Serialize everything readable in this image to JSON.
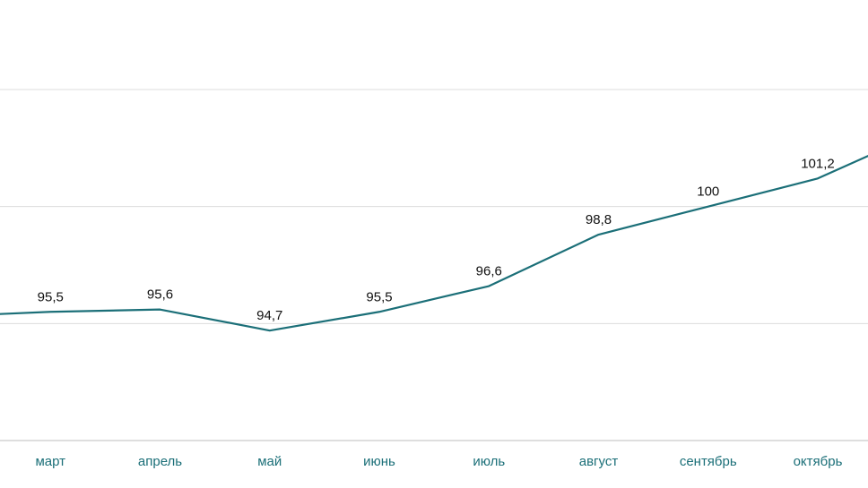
{
  "chart_data": {
    "type": "line",
    "categories": [
      "",
      "март",
      "апрель",
      "май",
      "июнь",
      "июль",
      "август",
      "сентябрь",
      "октябрь",
      ""
    ],
    "series": [
      {
        "values": [
          95.3,
          95.5,
          95.6,
          94.7,
          95.5,
          96.6,
          98.8,
          100,
          101.2,
          103.3
        ],
        "labels": [
          "",
          "95,5",
          "95,6",
          "94,7",
          "95,5",
          "96,6",
          "98,8",
          "100",
          "101,2",
          ""
        ]
      }
    ],
    "ylim": [
      90,
      105
    ],
    "y_gridlines": [
      95,
      100,
      105
    ],
    "grid": true,
    "legend": "none",
    "colors": {
      "line": "#1b6f78",
      "tick_text": "#1b6f78",
      "label_text": "#111111",
      "grid": "#dcdcdc"
    }
  }
}
